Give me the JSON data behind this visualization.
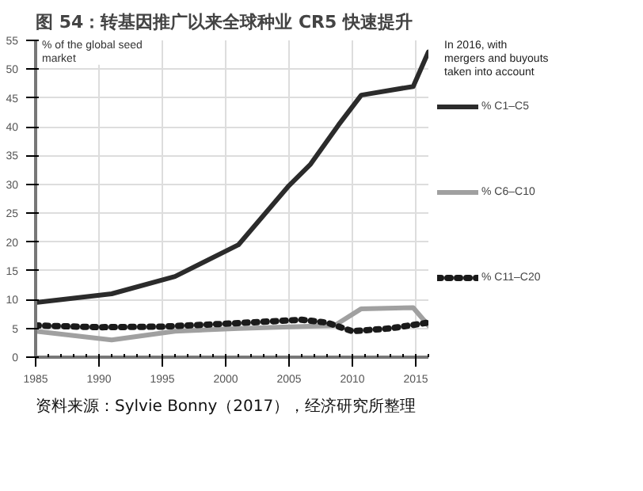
{
  "chart_data": {
    "type": "line",
    "title": "图 54：转基因推广以来全球种业 CR5 快速提升",
    "ylabel": "% of the global seed market",
    "annotations": [
      "In 2016, with mergers and buyouts taken into account",
      "资料来源：Sylvie Bonny（2017），经济研究所整理"
    ],
    "xlim": [
      1985,
      2016
    ],
    "xticks": [
      1985,
      1990,
      1995,
      2000,
      2005,
      2010,
      2015
    ],
    "ylim": [
      0,
      55
    ],
    "yticks": [
      0,
      5,
      10,
      15,
      20,
      25,
      30,
      35,
      40,
      45,
      50,
      55
    ],
    "grid": true,
    "legend": "right",
    "marker": "none",
    "series": [
      {
        "name": "% C1–C5",
        "color": "#2b2b2b",
        "line_style": "solid",
        "x": [
          1985,
          1991,
          1996,
          2001,
          2005,
          2006.7,
          2008.9,
          2010.7,
          2014.8,
          2016
        ],
        "values": [
          9.5,
          11,
          14,
          19.5,
          29.8,
          33.5,
          40.3,
          45.5,
          47,
          53
        ]
      },
      {
        "name": "% C6–C10",
        "color": "#a0a0a0",
        "line_style": "solid",
        "x": [
          1985,
          1991,
          1996,
          2001,
          2008.6,
          2010.7,
          2014.8,
          2016
        ],
        "values": [
          4.5,
          3,
          4.5,
          5,
          5.5,
          8.4,
          8.6,
          5.5
        ]
      },
      {
        "name": "% C11–C20",
        "color": "#1a1a1a",
        "line_style": "dotted",
        "x": [
          1985,
          1990,
          1995,
          2000,
          2006,
          2008,
          2010,
          2013,
          2016
        ],
        "values": [
          5.5,
          5.2,
          5.3,
          5.8,
          6.5,
          6,
          4.5,
          5,
          6
        ]
      }
    ]
  }
}
